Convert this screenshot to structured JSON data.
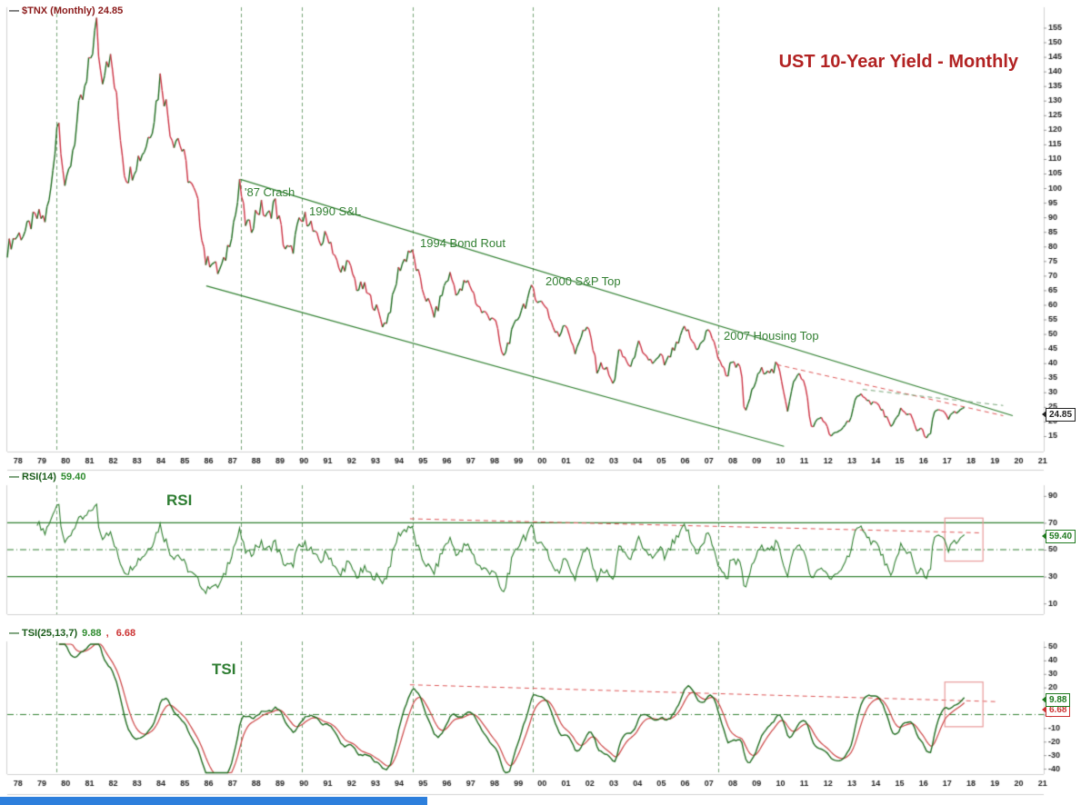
{
  "title": "UST 10-Year Yield - Monthly",
  "legends": {
    "main": {
      "dash": "—",
      "text": "$TNX (Monthly) 24.85"
    },
    "rsi": {
      "dash": "—",
      "label": "RSI(14)",
      "value": "59.40"
    },
    "tsi": {
      "dash": "—",
      "label": "TSI(25,13,7)",
      "value": "9.88",
      "sep": ", ",
      "signal": "6.68"
    }
  },
  "panel_titles": {
    "rsi": "RSI",
    "tsi": "TSI"
  },
  "annotations": [
    {
      "text": "'87 Crash"
    },
    {
      "text": "1990 S&L"
    },
    {
      "text": "1994 Bond Rout"
    },
    {
      "text": "2000 S&P Top"
    },
    {
      "text": "2007 Housing Top"
    }
  ],
  "tags": {
    "price": "24.85",
    "rsi": "59.40",
    "tsi": "9.88",
    "tsi_signal": "6.68"
  },
  "colors": {
    "up": "#1e6b1e",
    "down": "#cc3344",
    "grid": "#74a274",
    "level_green": "#2f7f2f",
    "trend_red": "#dd5555",
    "box_red": "#e89a9a",
    "rsi_line": "#2f7f2f",
    "tsi_line": "#1e6b1e",
    "tsi_signal": "#cc4444",
    "axis_text": "#222222",
    "separator": "#d0d0d0",
    "title_red": "#b22222",
    "legend_maroon": "#8b1a1a"
  },
  "chart_data": {
    "type": "line",
    "symbol": "$TNX",
    "timeframe": "Monthly",
    "title": "UST 10-Year Yield - Monthly",
    "x_range": [
      1978,
      2021.5
    ],
    "x_tick_years": [
      "78",
      "79",
      "80",
      "81",
      "82",
      "83",
      "84",
      "85",
      "86",
      "87",
      "88",
      "89",
      "90",
      "91",
      "92",
      "93",
      "94",
      "95",
      "96",
      "97",
      "98",
      "99",
      "00",
      "01",
      "02",
      "03",
      "04",
      "05",
      "06",
      "07",
      "08",
      "09",
      "10",
      "11",
      "12",
      "13",
      "14",
      "15",
      "16",
      "17",
      "18",
      "19",
      "20",
      "21"
    ],
    "main_ticks": [
      155,
      150,
      145,
      140,
      135,
      130,
      125,
      120,
      115,
      110,
      105,
      100,
      95,
      90,
      85,
      80,
      75,
      70,
      65,
      60,
      55,
      50,
      45,
      40,
      35,
      30,
      25,
      20,
      15
    ],
    "main_range": [
      9.7,
      162
    ],
    "last_value": 24.85,
    "price_anchors": [
      [
        1978.0,
        79
      ],
      [
        1978.5,
        84
      ],
      [
        1979.0,
        88
      ],
      [
        1979.6,
        90
      ],
      [
        1979.83,
        100
      ],
      [
        1980.12,
        125
      ],
      [
        1980.45,
        98
      ],
      [
        1980.75,
        115
      ],
      [
        1981.0,
        126
      ],
      [
        1981.3,
        132
      ],
      [
        1981.55,
        148
      ],
      [
        1981.75,
        157
      ],
      [
        1981.95,
        138
      ],
      [
        1982.2,
        145
      ],
      [
        1982.45,
        138
      ],
      [
        1982.75,
        120
      ],
      [
        1982.95,
        105
      ],
      [
        1983.2,
        104
      ],
      [
        1983.5,
        110
      ],
      [
        1983.9,
        118
      ],
      [
        1984.2,
        125
      ],
      [
        1984.45,
        138
      ],
      [
        1984.7,
        128
      ],
      [
        1984.95,
        118
      ],
      [
        1985.2,
        116
      ],
      [
        1985.45,
        108
      ],
      [
        1985.7,
        102
      ],
      [
        1985.95,
        97
      ],
      [
        1986.15,
        85
      ],
      [
        1986.35,
        73
      ],
      [
        1986.6,
        76
      ],
      [
        1986.85,
        72
      ],
      [
        1987.1,
        74
      ],
      [
        1987.35,
        82
      ],
      [
        1987.6,
        92
      ],
      [
        1987.78,
        103
      ],
      [
        1987.95,
        90
      ],
      [
        1988.2,
        85
      ],
      [
        1988.5,
        92
      ],
      [
        1988.7,
        94
      ],
      [
        1988.95,
        90
      ],
      [
        1989.2,
        95
      ],
      [
        1989.5,
        85
      ],
      [
        1989.65,
        80
      ],
      [
        1989.95,
        79
      ],
      [
        1990.2,
        86
      ],
      [
        1990.45,
        88
      ],
      [
        1990.65,
        91
      ],
      [
        1990.95,
        83
      ],
      [
        1991.2,
        81
      ],
      [
        1991.5,
        83
      ],
      [
        1991.75,
        78
      ],
      [
        1991.95,
        71
      ],
      [
        1992.2,
        74
      ],
      [
        1992.5,
        70
      ],
      [
        1992.7,
        66
      ],
      [
        1992.95,
        67
      ],
      [
        1993.2,
        62
      ],
      [
        1993.5,
        58
      ],
      [
        1993.8,
        53.5
      ],
      [
        1993.95,
        56
      ],
      [
        1994.2,
        62
      ],
      [
        1994.45,
        72
      ],
      [
        1994.7,
        76
      ],
      [
        1994.88,
        80.5
      ],
      [
        1995.1,
        75
      ],
      [
        1995.35,
        66
      ],
      [
        1995.6,
        62
      ],
      [
        1995.95,
        57
      ],
      [
        1996.2,
        62
      ],
      [
        1996.45,
        68
      ],
      [
        1996.6,
        70
      ],
      [
        1996.95,
        64
      ],
      [
        1997.2,
        67
      ],
      [
        1997.45,
        66
      ],
      [
        1997.7,
        61
      ],
      [
        1997.95,
        58
      ],
      [
        1998.2,
        56
      ],
      [
        1998.45,
        55
      ],
      [
        1998.75,
        44
      ],
      [
        1998.82,
        42
      ],
      [
        1999.0,
        47
      ],
      [
        1999.3,
        52
      ],
      [
        1999.6,
        59
      ],
      [
        1999.95,
        64
      ],
      [
        2000.05,
        67
      ],
      [
        2000.3,
        60
      ],
      [
        2000.6,
        60
      ],
      [
        2000.95,
        52
      ],
      [
        2001.15,
        49
      ],
      [
        2001.4,
        54
      ],
      [
        2001.6,
        50
      ],
      [
        2001.82,
        43
      ],
      [
        2001.95,
        48
      ],
      [
        2002.2,
        51
      ],
      [
        2002.45,
        50
      ],
      [
        2002.75,
        38
      ],
      [
        2002.95,
        40
      ],
      [
        2003.15,
        38
      ],
      [
        2003.45,
        31.5
      ],
      [
        2003.65,
        44
      ],
      [
        2003.95,
        42
      ],
      [
        2004.2,
        38
      ],
      [
        2004.45,
        47
      ],
      [
        2004.7,
        42
      ],
      [
        2004.95,
        42
      ],
      [
        2005.15,
        40
      ],
      [
        2005.45,
        42
      ],
      [
        2005.6,
        39
      ],
      [
        2005.95,
        45
      ],
      [
        2006.2,
        47
      ],
      [
        2006.45,
        52
      ],
      [
        2006.7,
        48
      ],
      [
        2006.95,
        46
      ],
      [
        2007.2,
        47
      ],
      [
        2007.45,
        52
      ],
      [
        2007.7,
        45
      ],
      [
        2007.95,
        41
      ],
      [
        2008.2,
        35
      ],
      [
        2008.4,
        41
      ],
      [
        2008.6,
        39
      ],
      [
        2008.8,
        38
      ],
      [
        2008.95,
        22
      ],
      [
        2009.15,
        28
      ],
      [
        2009.4,
        33
      ],
      [
        2009.6,
        37
      ],
      [
        2009.95,
        38.5
      ],
      [
        2010.15,
        37
      ],
      [
        2010.3,
        40
      ],
      [
        2010.6,
        30
      ],
      [
        2010.75,
        24
      ],
      [
        2010.95,
        33
      ],
      [
        2011.1,
        35
      ],
      [
        2011.3,
        36
      ],
      [
        2011.55,
        30
      ],
      [
        2011.72,
        18
      ],
      [
        2011.95,
        20
      ],
      [
        2012.15,
        22
      ],
      [
        2012.4,
        18
      ],
      [
        2012.55,
        14.5
      ],
      [
        2012.75,
        16
      ],
      [
        2012.95,
        17
      ],
      [
        2013.15,
        19
      ],
      [
        2013.4,
        21
      ],
      [
        2013.6,
        27
      ],
      [
        2013.95,
        30
      ],
      [
        2014.15,
        27
      ],
      [
        2014.45,
        26
      ],
      [
        2014.7,
        24
      ],
      [
        2014.95,
        21
      ],
      [
        2015.1,
        17.5
      ],
      [
        2015.3,
        21
      ],
      [
        2015.5,
        24
      ],
      [
        2015.75,
        22
      ],
      [
        2015.95,
        23
      ],
      [
        2016.15,
        17
      ],
      [
        2016.35,
        18
      ],
      [
        2016.55,
        13.7
      ],
      [
        2016.75,
        16
      ],
      [
        2016.92,
        24.5
      ],
      [
        2017.1,
        24
      ],
      [
        2017.3,
        23
      ],
      [
        2017.5,
        20.5
      ],
      [
        2017.7,
        23
      ],
      [
        2017.9,
        23.5
      ],
      [
        2018.05,
        24.3
      ],
      [
        2018.17,
        24.85
      ]
    ],
    "grid_years": [
      1980.05,
      1987.8,
      1990.35,
      1995.0,
      2000.05,
      2007.85
    ],
    "channel": {
      "upper": [
        [
          1987.78,
          103
        ],
        [
          2020.2,
          22
        ]
      ],
      "lower": [
        [
          1986.35,
          66.5
        ],
        [
          2010.6,
          11.5
        ]
      ]
    },
    "main_trendlines": [
      {
        "color": "red",
        "pts": [
          [
            2010.3,
            39.5
          ],
          [
            2019.8,
            22
          ]
        ]
      },
      {
        "color": "green",
        "pts": [
          [
            2013.9,
            31
          ],
          [
            2019.8,
            25.5
          ]
        ]
      }
    ],
    "rsi": {
      "period": 14,
      "last": 59.4,
      "levels": [
        70,
        30
      ],
      "mid": 50,
      "ticks": [
        90,
        70,
        50,
        30,
        10
      ],
      "range": [
        2,
        98
      ],
      "trendline": [
        [
          1994.9,
          73
        ],
        [
          2018.9,
          62.5
        ]
      ],
      "box": [
        [
          2017.35,
          73.5
        ],
        [
          2018.95,
          41.5
        ]
      ]
    },
    "tsi": {
      "periods": [
        25,
        13,
        7
      ],
      "last": 9.88,
      "signal_last": 6.68,
      "mid": 0,
      "ticks": [
        50,
        40,
        30,
        20,
        10,
        0,
        -10,
        -20,
        -30,
        -40
      ],
      "range": [
        -44,
        54
      ],
      "trendline": [
        [
          1994.9,
          22
        ],
        [
          2019.6,
          9.5
        ]
      ],
      "box": [
        [
          2017.35,
          24
        ],
        [
          2018.95,
          -9
        ]
      ]
    }
  }
}
